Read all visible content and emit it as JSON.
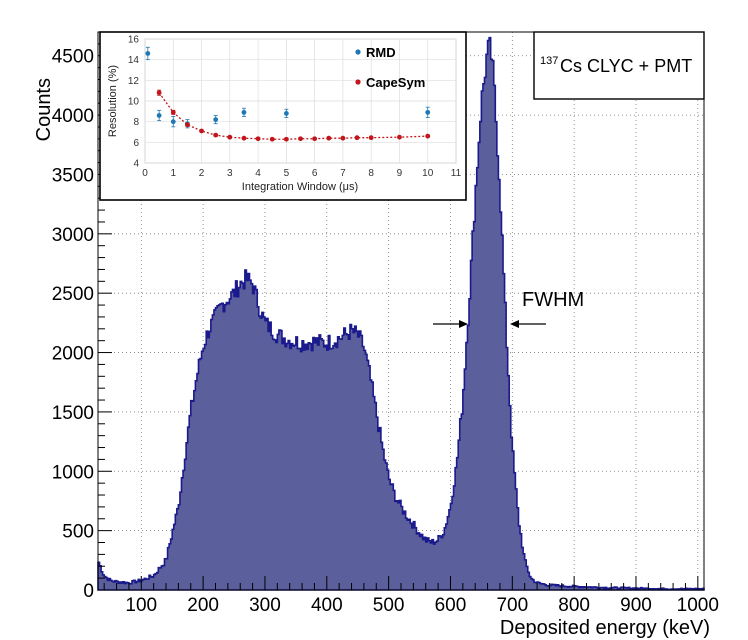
{
  "chart_data": [
    {
      "type": "area",
      "title": "",
      "xlabel": "Deposited energy (keV)",
      "ylabel": "Counts",
      "xlim": [
        30,
        1010
      ],
      "ylim": [
        0,
        4700
      ],
      "x_ticks": [
        100,
        200,
        300,
        400,
        500,
        600,
        700,
        800,
        900,
        1000
      ],
      "x_tick_labels": [
        "100",
        "200",
        "300",
        "400",
        "500",
        "600",
        "700",
        "800",
        "900",
        "1000"
      ],
      "y_ticks": [
        0,
        500,
        1000,
        1500,
        2000,
        2500,
        3000,
        3500,
        4000,
        4500
      ],
      "y_tick_labels": [
        "0",
        "500",
        "1000",
        "1500",
        "2000",
        "2500",
        "3000",
        "3500",
        "4000",
        "4500"
      ],
      "grid": true,
      "fill_color": "#5b5f9b",
      "line_color": "#1a1a8c",
      "x": [
        30,
        40,
        50,
        60,
        80,
        100,
        120,
        140,
        160,
        170,
        180,
        190,
        200,
        210,
        220,
        230,
        240,
        250,
        260,
        270,
        280,
        290,
        300,
        310,
        320,
        340,
        360,
        380,
        400,
        420,
        440,
        450,
        460,
        470,
        480,
        490,
        500,
        510,
        520,
        530,
        540,
        550,
        560,
        570,
        580,
        590,
        600,
        610,
        620,
        630,
        640,
        650,
        660,
        665,
        670,
        680,
        690,
        700,
        710,
        720,
        730,
        740,
        760,
        800,
        850,
        900,
        950,
        1000,
        1010
      ],
      "y": [
        250,
        120,
        80,
        70,
        60,
        80,
        120,
        250,
        700,
        1100,
        1500,
        1800,
        2050,
        2200,
        2300,
        2400,
        2450,
        2500,
        2580,
        2620,
        2580,
        2400,
        2250,
        2200,
        2150,
        2100,
        2080,
        2090,
        2080,
        2120,
        2180,
        2150,
        2050,
        1800,
        1500,
        1200,
        950,
        800,
        700,
        620,
        550,
        480,
        420,
        400,
        420,
        500,
        700,
        1050,
        1600,
        2400,
        3300,
        4100,
        4540,
        4560,
        4300,
        3400,
        2200,
        1200,
        600,
        250,
        100,
        60,
        40,
        30,
        20,
        15,
        10,
        10,
        10
      ]
    },
    {
      "type": "scatter",
      "xlabel": "Integration Window (μs)",
      "ylabel": "Resolution (%)",
      "xlim": [
        0,
        11
      ],
      "ylim": [
        4,
        16
      ],
      "x_ticks": [
        0,
        1,
        2,
        3,
        4,
        5,
        6,
        7,
        8,
        9,
        10,
        11
      ],
      "x_tick_labels": [
        "0",
        "1",
        "2",
        "3",
        "4",
        "5",
        "6",
        "7",
        "8",
        "9",
        "10",
        "11"
      ],
      "y_ticks": [
        4,
        6,
        8,
        10,
        12,
        14,
        16
      ],
      "y_tick_labels": [
        "4",
        "6",
        "8",
        "10",
        "12",
        "14",
        "16"
      ],
      "grid": true,
      "legend_placement": "top-right",
      "series": [
        {
          "name": "RMD",
          "color": "#1f77b4",
          "x": [
            0.1,
            0.5,
            1.0,
            1.5,
            2.5,
            3.5,
            5.0,
            10.0
          ],
          "y": [
            14.6,
            8.6,
            8.0,
            7.8,
            8.2,
            8.9,
            8.8,
            8.9
          ],
          "err": [
            0.6,
            0.5,
            0.5,
            0.4,
            0.4,
            0.4,
            0.4,
            0.5
          ]
        },
        {
          "name": "CapeSym",
          "color": "#c0161c",
          "x": [
            0.5,
            1.0,
            1.5,
            2.0,
            2.5,
            3.0,
            3.5,
            4.0,
            4.5,
            5.0,
            5.5,
            6.0,
            6.5,
            7.0,
            7.5,
            8.0,
            9.0,
            10.0
          ],
          "y": [
            10.8,
            8.9,
            7.7,
            7.1,
            6.7,
            6.5,
            6.4,
            6.35,
            6.3,
            6.3,
            6.35,
            6.35,
            6.4,
            6.4,
            6.45,
            6.45,
            6.5,
            6.6
          ],
          "err": [
            0.25,
            0.2,
            0.15,
            0.12,
            0.12,
            0.1,
            0.1,
            0.1,
            0.1,
            0.1,
            0.1,
            0.1,
            0.1,
            0.1,
            0.1,
            0.1,
            0.1,
            0.1
          ]
        }
      ]
    }
  ],
  "annotations": {
    "fwhm": "FWHM",
    "source_sup": "137",
    "source_text": "Cs CLYC + PMT"
  }
}
